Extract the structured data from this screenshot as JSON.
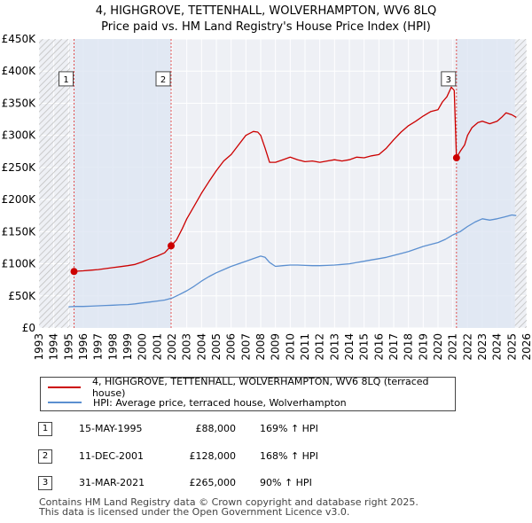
{
  "title": "4, HIGHGROVE, TETTENHALL, WOLVERHAMPTON, WV6 8LQ",
  "subtitle": "Price paid vs. HM Land Registry's House Price Index (HPI)",
  "colors": {
    "property": "#cc0000",
    "hpi": "#5b8fd0",
    "shade": "#dde6f3",
    "hatch": "#c8c8c8",
    "marker_line": "#e05050",
    "grid": "#ffffff"
  },
  "legend": {
    "property_label": "4, HIGHGROVE, TETTENHALL, WOLVERHAMPTON, WV6 8LQ (terraced house)",
    "hpi_label": "HPI: Average price, terraced house, Wolverhampton"
  },
  "transactions": [
    {
      "num": "1",
      "date": "15-MAY-1995",
      "price": "£88,000",
      "hpi_change": "169% ↑ HPI"
    },
    {
      "num": "2",
      "date": "11-DEC-2001",
      "price": "£128,000",
      "hpi_change": "168% ↑ HPI"
    },
    {
      "num": "3",
      "date": "31-MAR-2021",
      "price": "£265,000",
      "hpi_change": "90% ↑ HPI"
    }
  ],
  "footer_line1": "Contains HM Land Registry data © Crown copyright and database right 2025.",
  "footer_line2": "This data is licensed under the Open Government Licence v3.0.",
  "chart_data": {
    "type": "line",
    "title": "4, HIGHGROVE, TETTENHALL, WOLVERHAMPTON, WV6 8LQ",
    "subtitle": "Price paid vs. HM Land Registry's House Price Index (HPI)",
    "xlim": [
      1993,
      2026
    ],
    "ylim": [
      0,
      450000
    ],
    "x_ticks": [
      "1993",
      "1994",
      "1995",
      "1996",
      "1997",
      "1998",
      "1999",
      "2000",
      "2001",
      "2002",
      "2003",
      "2004",
      "2005",
      "2006",
      "2007",
      "2008",
      "2009",
      "2010",
      "2011",
      "2012",
      "2013",
      "2014",
      "2015",
      "2016",
      "2017",
      "2018",
      "2019",
      "2020",
      "2021",
      "2022",
      "2023",
      "2024",
      "2025",
      "2026"
    ],
    "y_ticks": [
      {
        "value": 0,
        "label": "£0"
      },
      {
        "value": 50000,
        "label": "£50K"
      },
      {
        "value": 100000,
        "label": "£100K"
      },
      {
        "value": 150000,
        "label": "£150K"
      },
      {
        "value": 200000,
        "label": "£200K"
      },
      {
        "value": 250000,
        "label": "£250K"
      },
      {
        "value": 300000,
        "label": "£300K"
      },
      {
        "value": 350000,
        "label": "£350K"
      },
      {
        "value": 400000,
        "label": "£400K"
      },
      {
        "value": 450000,
        "label": "£450K"
      }
    ],
    "hatched_ranges": [
      [
        1993,
        1995.1
      ],
      [
        2025.2,
        2026
      ]
    ],
    "shaded_ranges": [
      [
        1995.37,
        2001.94
      ],
      [
        2021.25,
        2025.2
      ]
    ],
    "sale_markers": [
      {
        "label": "1",
        "x": 1995.37,
        "y": 88000,
        "box_y": 388000
      },
      {
        "label": "2",
        "x": 2001.94,
        "y": 128000,
        "box_y": 388000
      },
      {
        "label": "3",
        "x": 2021.25,
        "y": 265000,
        "box_y": 388000
      }
    ],
    "series": [
      {
        "name": "4, HIGHGROVE, TETTENHALL, WOLVERHAMPTON, WV6 8LQ (terraced house)",
        "x": [
          1995.37,
          1995.6,
          1996,
          1996.5,
          1997,
          1997.5,
          1998,
          1998.5,
          1999,
          1999.5,
          2000,
          2000.5,
          2001,
          2001.5,
          2001.94,
          2002.3,
          2002.7,
          2003,
          2003.5,
          2004,
          2004.5,
          2005,
          2005.5,
          2006,
          2006.5,
          2007,
          2007.5,
          2007.8,
          2008,
          2008.3,
          2008.6,
          2009,
          2009.5,
          2010,
          2010.5,
          2011,
          2011.5,
          2012,
          2012.5,
          2013,
          2013.5,
          2014,
          2014.5,
          2015,
          2015.5,
          2016,
          2016.5,
          2017,
          2017.5,
          2018,
          2018.5,
          2019,
          2019.5,
          2020,
          2020.3,
          2020.6,
          2020.9,
          2021.1,
          2021.25,
          2021.5,
          2021.8,
          2022,
          2022.3,
          2022.7,
          2023,
          2023.5,
          2024,
          2024.3,
          2024.6,
          2025,
          2025.3
        ],
        "values": [
          88000,
          88500,
          89000,
          90000,
          91000,
          92500,
          94000,
          95500,
          97000,
          99000,
          103000,
          108000,
          112000,
          117000,
          128000,
          137000,
          155000,
          170000,
          190000,
          210000,
          228000,
          245000,
          260000,
          270000,
          285000,
          300000,
          306000,
          305000,
          300000,
          280000,
          258000,
          258000,
          262000,
          266000,
          262000,
          259000,
          260000,
          258000,
          260000,
          262000,
          260000,
          262000,
          266000,
          265000,
          268000,
          270000,
          280000,
          293000,
          305000,
          315000,
          322000,
          330000,
          337000,
          340000,
          352000,
          360000,
          375000,
          370000,
          265000,
          275000,
          285000,
          300000,
          312000,
          320000,
          322000,
          318000,
          322000,
          328000,
          335000,
          332000,
          328000
        ]
      },
      {
        "name": "HPI: Average price, terraced house, Wolverhampton",
        "x": [
          1995,
          1995.5,
          1996,
          1996.5,
          1997,
          1997.5,
          1998,
          1998.5,
          1999,
          1999.5,
          2000,
          2000.5,
          2001,
          2001.5,
          2002,
          2002.5,
          2003,
          2003.5,
          2004,
          2004.5,
          2005,
          2005.5,
          2006,
          2006.5,
          2007,
          2007.5,
          2008,
          2008.3,
          2008.6,
          2009,
          2009.5,
          2010,
          2010.5,
          2011,
          2011.5,
          2012,
          2012.5,
          2013,
          2013.5,
          2014,
          2014.5,
          2015,
          2015.5,
          2016,
          2016.5,
          2017,
          2017.5,
          2018,
          2018.5,
          2019,
          2019.5,
          2020,
          2020.5,
          2021,
          2021.5,
          2022,
          2022.5,
          2023,
          2023.5,
          2024,
          2024.5,
          2025,
          2025.3
        ],
        "values": [
          33000,
          33500,
          33500,
          34000,
          34500,
          35000,
          35500,
          36000,
          36500,
          37500,
          39000,
          40500,
          42000,
          43500,
          46500,
          52000,
          58000,
          65000,
          73000,
          80000,
          86000,
          91000,
          96000,
          100000,
          104000,
          108000,
          112000,
          110000,
          102000,
          96000,
          97000,
          98000,
          98000,
          97500,
          97000,
          97000,
          97500,
          98000,
          99000,
          100000,
          102000,
          104000,
          106000,
          108000,
          110000,
          113000,
          116000,
          119000,
          123000,
          127000,
          130000,
          133000,
          138000,
          145000,
          150000,
          158000,
          165000,
          170000,
          168000,
          170000,
          173000,
          176000,
          175000
        ]
      }
    ]
  }
}
